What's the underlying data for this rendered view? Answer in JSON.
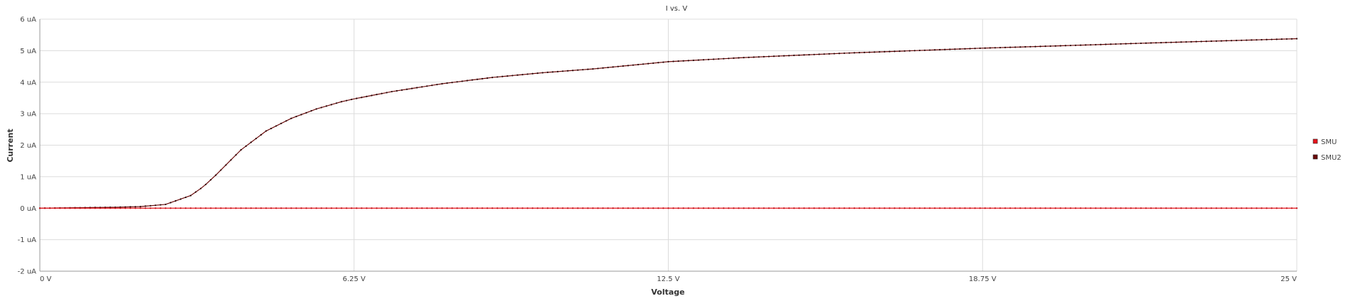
{
  "chart_data": {
    "type": "line",
    "title": "I vs. V",
    "xlabel": "Voltage",
    "ylabel": "Current",
    "xlim": [
      0,
      25
    ],
    "ylim": [
      -2,
      6
    ],
    "x_ticks": [
      0,
      6.25,
      12.5,
      18.75,
      25
    ],
    "x_tick_labels": [
      "0 V",
      "6.25 V",
      "12.5 V",
      "18.75 V",
      "25 V"
    ],
    "y_ticks": [
      -2,
      -1,
      0,
      1,
      2,
      3,
      4,
      5,
      6
    ],
    "y_tick_labels": [
      "-2 uA",
      "-1 uA",
      "0 uA",
      "1 uA",
      "2 uA",
      "3 uA",
      "4 uA",
      "5 uA",
      "6 uA"
    ],
    "grid": true,
    "legend_position": "right",
    "series": [
      {
        "name": "SMU",
        "color": "#e8141c",
        "x": [
          0,
          25
        ],
        "values": [
          0,
          0
        ],
        "marker_step": 0.1
      },
      {
        "name": "SMU2",
        "color": "#6b0a0a",
        "x": [
          0,
          0.5,
          1,
          1.5,
          2,
          2.5,
          3,
          3.25,
          3.5,
          4,
          4.5,
          5,
          5.5,
          6,
          6.25,
          7,
          8,
          9,
          10,
          11,
          12.5,
          14,
          16,
          18.75,
          20,
          22,
          25
        ],
        "values": [
          0,
          0.01,
          0.02,
          0.03,
          0.05,
          0.12,
          0.4,
          0.68,
          1.05,
          1.85,
          2.45,
          2.85,
          3.15,
          3.38,
          3.47,
          3.7,
          3.95,
          4.15,
          4.3,
          4.42,
          4.65,
          4.78,
          4.92,
          5.08,
          5.14,
          5.24,
          5.38
        ],
        "marker_step": 0.1
      }
    ]
  }
}
